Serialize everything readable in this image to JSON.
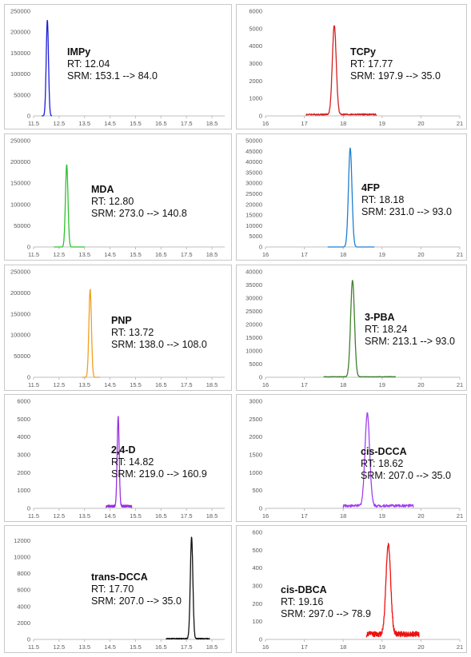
{
  "chart_data": [
    {
      "type": "line",
      "compound": "IMPy",
      "rt_label": "RT: 12.04",
      "srm_label": "SRM: 153.1 --> 84.0",
      "color": "#1f1fd6",
      "x_ticks": [
        "11.5",
        "12.5",
        "13.5",
        "14.5",
        "15.5",
        "16.5",
        "17.5",
        "18.5"
      ],
      "xlim": [
        11.5,
        19
      ],
      "y_ticks": [
        "0",
        "50000",
        "100000",
        "150000",
        "200000",
        "250000"
      ],
      "ylim": [
        0,
        250000
      ],
      "peak_rt": 12.04,
      "peak_height": 228000,
      "peak_width": 0.045,
      "x_range": [
        11.82,
        12.22
      ],
      "noise": 0
    },
    {
      "type": "line",
      "compound": "TCPy",
      "rt_label": "RT: 17.77",
      "srm_label": "SRM: 197.9 --> 35.0",
      "color": "#d42020",
      "x_ticks": [
        "16",
        "17",
        "18",
        "19",
        "20",
        "21"
      ],
      "xlim": [
        16,
        21
      ],
      "y_ticks": [
        "0",
        "1000",
        "2000",
        "3000",
        "4000",
        "5000",
        "6000"
      ],
      "ylim": [
        0,
        6000
      ],
      "peak_rt": 17.77,
      "peak_height": 5100,
      "peak_width": 0.05,
      "x_range": [
        17.05,
        18.85
      ],
      "noise": 70
    },
    {
      "type": "line",
      "compound": "MDA",
      "rt_label": "RT: 12.80",
      "srm_label": "SRM: 273.0 --> 140.8",
      "color": "#2ec22e",
      "x_ticks": [
        "11.5",
        "12.5",
        "13.5",
        "14.5",
        "15.5",
        "16.5",
        "17.5",
        "18.5"
      ],
      "xlim": [
        11.5,
        19
      ],
      "y_ticks": [
        "0",
        "50000",
        "100000",
        "150000",
        "200000",
        "250000"
      ],
      "ylim": [
        0,
        250000
      ],
      "peak_rt": 12.8,
      "peak_height": 193000,
      "peak_width": 0.05,
      "x_range": [
        12.3,
        13.5
      ],
      "noise": 0
    },
    {
      "type": "line",
      "compound": "4FP",
      "rt_label": "RT: 18.18",
      "srm_label": "SRM: 231.0 --> 93.0",
      "color": "#1f7fd0",
      "x_ticks": [
        "16",
        "17",
        "18",
        "19",
        "20",
        "21"
      ],
      "xlim": [
        16,
        21
      ],
      "y_ticks": [
        "0",
        "5000",
        "10000",
        "15000",
        "20000",
        "25000",
        "30000",
        "35000",
        "40000",
        "45000",
        "50000"
      ],
      "ylim": [
        0,
        50000
      ],
      "peak_rt": 18.18,
      "peak_height": 46500,
      "peak_width": 0.045,
      "x_range": [
        17.6,
        18.8
      ],
      "noise": 0
    },
    {
      "type": "line",
      "compound": "PNP",
      "rt_label": "RT: 13.72",
      "srm_label": "SRM: 138.0 --> 108.0",
      "color": "#f0a020",
      "x_ticks": [
        "11.5",
        "12.5",
        "13.5",
        "14.5",
        "15.5",
        "16.5",
        "17.5",
        "18.5"
      ],
      "xlim": [
        11.5,
        19
      ],
      "y_ticks": [
        "0",
        "50000",
        "100000",
        "150000",
        "200000",
        "250000"
      ],
      "ylim": [
        0,
        250000
      ],
      "peak_rt": 13.72,
      "peak_height": 208000,
      "peak_width": 0.05,
      "x_range": [
        13.4,
        14.1
      ],
      "noise": 0
    },
    {
      "type": "line",
      "compound": "3-PBA",
      "rt_label": "RT: 18.24",
      "srm_label": "SRM: 213.1 --> 93.0",
      "color": "#3f7f2e",
      "x_ticks": [
        "16",
        "17",
        "18",
        "19",
        "20",
        "21"
      ],
      "xlim": [
        16,
        21
      ],
      "y_ticks": [
        "0",
        "5000",
        "10000",
        "15000",
        "20000",
        "25000",
        "30000",
        "35000",
        "40000"
      ],
      "ylim": [
        0,
        40000
      ],
      "peak_rt": 18.24,
      "peak_height": 36500,
      "peak_width": 0.05,
      "x_range": [
        17.5,
        19.35
      ],
      "noise": 150
    },
    {
      "type": "line",
      "compound": "2,4-D",
      "rt_label": "RT: 14.82",
      "srm_label": "SRM: 219.0 --> 160.9",
      "color": "#9b30e0",
      "x_ticks": [
        "11.5",
        "12.5",
        "13.5",
        "14.5",
        "15.5",
        "16.5",
        "17.5",
        "18.5"
      ],
      "xlim": [
        11.5,
        19
      ],
      "y_ticks": [
        "0",
        "1000",
        "2000",
        "3000",
        "4000",
        "5000",
        "6000"
      ],
      "ylim": [
        0,
        6000
      ],
      "peak_rt": 14.82,
      "peak_height": 5000,
      "peak_width": 0.04,
      "x_range": [
        14.35,
        15.35
      ],
      "noise": 100
    },
    {
      "type": "line",
      "compound": "cis-DCCA",
      "rt_label": "RT: 18.62",
      "srm_label": "SRM: 207.0 --> 35.0",
      "color": "#a040f0",
      "x_ticks": [
        "16",
        "17",
        "18",
        "19",
        "20",
        "21"
      ],
      "xlim": [
        16,
        21
      ],
      "y_ticks": [
        "0",
        "500",
        "1000",
        "1500",
        "2000",
        "2500",
        "3000"
      ],
      "ylim": [
        0,
        3000
      ],
      "peak_rt": 18.62,
      "peak_height": 2600,
      "peak_width": 0.06,
      "x_range": [
        18.0,
        19.8
      ],
      "noise": 60
    },
    {
      "type": "line",
      "compound": "trans-DCCA",
      "rt_label": "RT: 17.70",
      "srm_label": "SRM: 207.0 --> 35.0",
      "color": "#111111",
      "x_ticks": [
        "11.5",
        "12.5",
        "13.5",
        "14.5",
        "15.5",
        "16.5",
        "17.5",
        "18.5"
      ],
      "xlim": [
        11.5,
        19
      ],
      "y_ticks": [
        "0",
        "2000",
        "4000",
        "6000",
        "8000",
        "10000",
        "12000"
      ],
      "ylim": [
        0,
        13000
      ],
      "peak_rt": 17.7,
      "peak_height": 12300,
      "peak_width": 0.05,
      "x_range": [
        16.7,
        18.4
      ],
      "noise": 80
    },
    {
      "type": "line",
      "compound": "cis-DBCA",
      "rt_label": "RT: 19.16",
      "srm_label": "SRM: 297.0 --> 78.9",
      "color": "#ee1111",
      "x_ticks": [
        "16",
        "17",
        "18",
        "19",
        "20",
        "21"
      ],
      "xlim": [
        16,
        21
      ],
      "y_ticks": [
        "0",
        "100",
        "200",
        "300",
        "400",
        "500",
        "600"
      ],
      "ylim": [
        0,
        600
      ],
      "peak_rt": 19.16,
      "peak_height": 505,
      "peak_width": 0.06,
      "x_range": [
        18.6,
        19.95
      ],
      "noise": 25
    }
  ]
}
